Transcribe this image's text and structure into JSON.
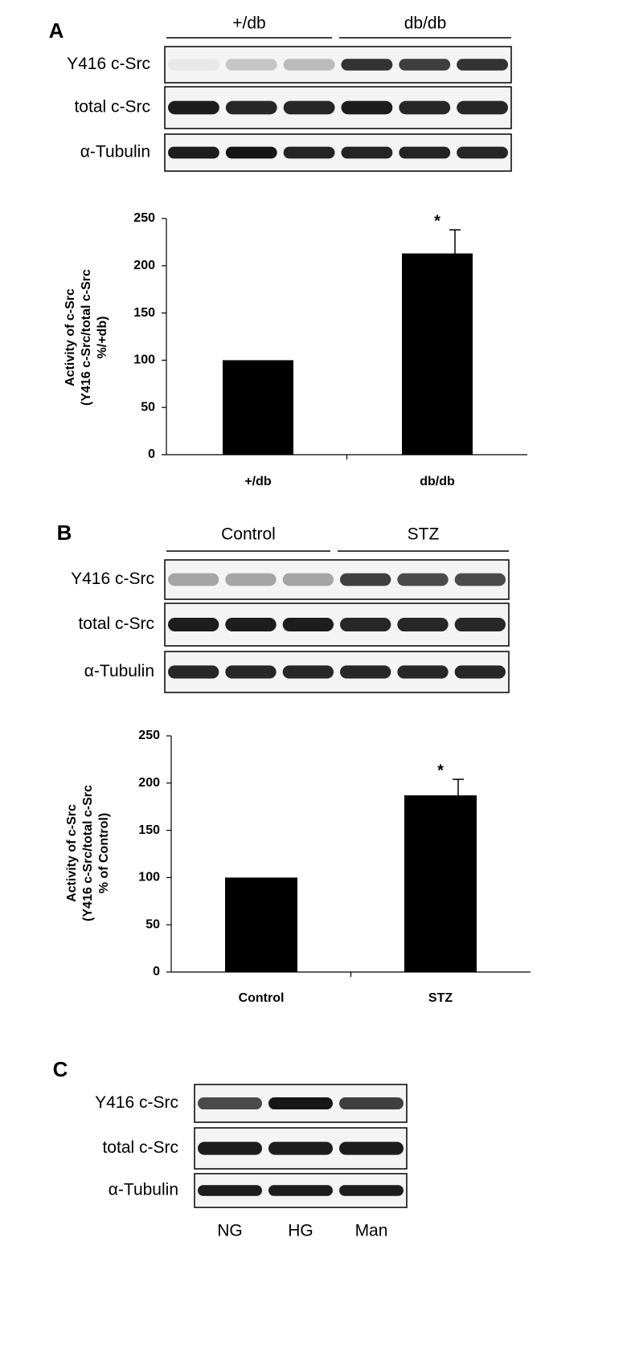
{
  "panels": [
    {
      "label": "A",
      "groups": [
        "+/db",
        "db/db"
      ],
      "blot_rows": [
        "Y416 c-Src",
        "total c-Src",
        "α-Tubulin"
      ]
    },
    {
      "label": "B",
      "groups": [
        "Control",
        "STZ"
      ],
      "blot_rows": [
        "Y416 c-Src",
        "total c-Src",
        "α-Tubulin"
      ]
    },
    {
      "label": "C",
      "blot_rows": [
        "Y416 c-Src",
        "total c-Src",
        "α-Tubulin"
      ],
      "lanes": [
        "NG",
        "HG",
        "Man"
      ]
    }
  ],
  "chart_data": [
    {
      "type": "bar",
      "ylabel": [
        "Activity of c-Src",
        "(Y416 c-Src/total c-Src",
        "%/+db)"
      ],
      "categories": [
        "+/db",
        "db/db"
      ],
      "values": [
        100,
        213
      ],
      "errors": [
        null,
        25
      ],
      "annotations": [
        null,
        "*"
      ],
      "color": "#000000",
      "ylim": [
        0,
        250
      ],
      "yticks": [
        0,
        50,
        100,
        150,
        200,
        250
      ]
    },
    {
      "type": "bar",
      "ylabel": [
        "Activity of c-Src",
        "(Y416 c-Src/total c-Src",
        "% of Control)"
      ],
      "categories": [
        "Control",
        "STZ"
      ],
      "values": [
        100,
        187
      ],
      "errors": [
        null,
        17
      ],
      "annotations": [
        null,
        "*"
      ],
      "color": "#000000",
      "ylim": [
        0,
        250
      ],
      "yticks": [
        0,
        50,
        100,
        150,
        200,
        250
      ]
    }
  ]
}
